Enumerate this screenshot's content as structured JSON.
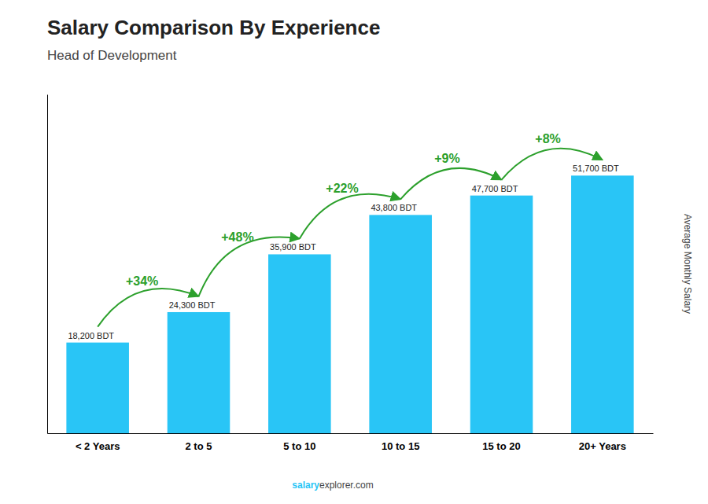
{
  "chart_data": {
    "type": "bar",
    "title": "Salary Comparison By Experience",
    "subtitle": "Head of Development",
    "ylabel": "Average Monthly Salary",
    "categories": [
      "< 2 Years",
      "2 to 5",
      "5 to 10",
      "10 to 15",
      "15 to 20",
      "20+ Years"
    ],
    "values": [
      18200,
      24300,
      35900,
      43800,
      47700,
      51700
    ],
    "value_labels": [
      "18,200 BDT",
      "24,300 BDT",
      "35,900 BDT",
      "43,800 BDT",
      "47,700 BDT",
      "51,700 BDT"
    ],
    "data_labels": true,
    "annotations": [
      "+34%",
      "+48%",
      "+22%",
      "+9%",
      "+8%"
    ],
    "watermark": [
      "salary",
      "explorer.com"
    ],
    "color": "#29c5f6",
    "ylim": [
      0,
      68000
    ],
    "tick_labels": "x",
    "grid": false
  }
}
